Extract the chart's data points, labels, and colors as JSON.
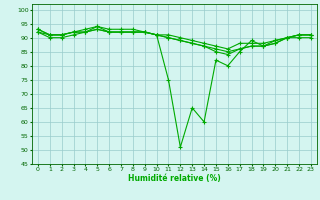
{
  "title": "",
  "xlabel": "Humidité relative (%)",
  "ylabel": "",
  "xlim": [
    -0.5,
    23.5
  ],
  "ylim": [
    45,
    102
  ],
  "yticks": [
    45,
    50,
    55,
    60,
    65,
    70,
    75,
    80,
    85,
    90,
    95,
    100
  ],
  "xticks": [
    0,
    1,
    2,
    3,
    4,
    5,
    6,
    7,
    8,
    9,
    10,
    11,
    12,
    13,
    14,
    15,
    16,
    17,
    18,
    19,
    20,
    21,
    22,
    23
  ],
  "bg_color": "#d4f5f0",
  "grid_color": "#99cccc",
  "line_color": "#00aa00",
  "series": [
    [
      92,
      90,
      90,
      91,
      92,
      94,
      92,
      92,
      92,
      92,
      91,
      75,
      51,
      65,
      60,
      82,
      80,
      85,
      89,
      87,
      89,
      90,
      91,
      91
    ],
    [
      93,
      91,
      91,
      92,
      93,
      94,
      93,
      93,
      93,
      92,
      91,
      90,
      89,
      88,
      87,
      86,
      85,
      86,
      87,
      87,
      88,
      90,
      91,
      91
    ],
    [
      92,
      91,
      91,
      92,
      92,
      93,
      92,
      92,
      92,
      92,
      91,
      90,
      89,
      88,
      87,
      85,
      84,
      86,
      87,
      87,
      88,
      90,
      90,
      90
    ],
    [
      93,
      91,
      91,
      92,
      92,
      93,
      92,
      92,
      92,
      92,
      91,
      91,
      90,
      89,
      88,
      87,
      86,
      88,
      88,
      88,
      89,
      90,
      91,
      91
    ]
  ],
  "marker": "+",
  "markersize": 3,
  "linewidth": 0.8
}
